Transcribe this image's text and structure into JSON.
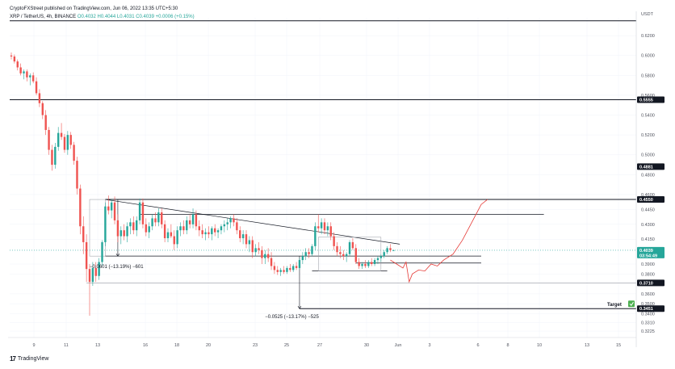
{
  "header": {
    "published": "CryptoFXStreet published on TradingView.com, Jun 06, 2022 13:35 UTC+5:30",
    "pair": "XRP / TetherUS, 4h, BINANCE",
    "ohlc": "O0.4032  H0.4044  L0.4031  C0.4039  +0.0006 (+0.15%)"
  },
  "footer": {
    "logo_text": "TradingView"
  },
  "colors": {
    "up": "#26a69a",
    "down": "#ef5350",
    "projection": "#e53935",
    "price_line": "#26a69a",
    "target_check": "#4caf50"
  },
  "chart_data": {
    "type": "candlestick",
    "currency_label": "USDT",
    "ylim": [
      0.316,
      0.638
    ],
    "y_ticks": [
      "0.6200",
      "0.6000",
      "0.5800",
      "0.5600",
      "0.5400",
      "0.5200",
      "0.5000",
      "0.4800",
      "0.4600",
      "0.4450",
      "0.4300",
      "0.4150",
      "0.3900",
      "0.3800",
      "0.3600",
      "0.3500",
      "0.3400",
      "0.3310",
      "0.3225"
    ],
    "x_ticks": [
      "9",
      "11",
      "13",
      "16",
      "18",
      "20",
      "23",
      "25",
      "27",
      "30",
      "Jun",
      "3",
      "6",
      "8",
      "10",
      "13",
      "15"
    ],
    "price_tags": [
      {
        "label": "0.5555",
        "value": 0.5555
      },
      {
        "label": "0.4881",
        "value": 0.4881
      },
      {
        "label": "0.4550",
        "value": 0.455
      },
      {
        "label": "0.4039",
        "value": 0.4039
      },
      {
        "label": "0.3710",
        "value": 0.371
      },
      {
        "label": "0.3451",
        "value": 0.3451
      }
    ],
    "current_price_countdown": "03:54:49",
    "horizontal_levels": [
      0.635,
      0.5555,
      0.455,
      0.44,
      0.371,
      0.3451
    ],
    "annotations": {
      "measure_1": "−0.0601 (−13.19%) −601",
      "measure_2": "−0.0525 (−13.17%) −525",
      "target_label": "Target"
    },
    "candles": [
      {
        "t": 0,
        "o": 0.6,
        "h": 0.603,
        "l": 0.596,
        "c": 0.599
      },
      {
        "t": 1,
        "o": 0.599,
        "h": 0.601,
        "l": 0.592,
        "c": 0.594
      },
      {
        "t": 2,
        "o": 0.594,
        "h": 0.596,
        "l": 0.585,
        "c": 0.588
      },
      {
        "t": 3,
        "o": 0.588,
        "h": 0.592,
        "l": 0.58,
        "c": 0.582
      },
      {
        "t": 4,
        "o": 0.582,
        "h": 0.586,
        "l": 0.576,
        "c": 0.584
      },
      {
        "t": 5,
        "o": 0.584,
        "h": 0.586,
        "l": 0.574,
        "c": 0.578
      },
      {
        "t": 6,
        "o": 0.578,
        "h": 0.582,
        "l": 0.57,
        "c": 0.58
      },
      {
        "t": 7,
        "o": 0.58,
        "h": 0.583,
        "l": 0.572,
        "c": 0.574
      },
      {
        "t": 8,
        "o": 0.574,
        "h": 0.578,
        "l": 0.56,
        "c": 0.562
      },
      {
        "t": 9,
        "o": 0.562,
        "h": 0.566,
        "l": 0.548,
        "c": 0.552
      },
      {
        "t": 10,
        "o": 0.552,
        "h": 0.554,
        "l": 0.536,
        "c": 0.54
      },
      {
        "t": 11,
        "o": 0.54,
        "h": 0.545,
        "l": 0.52,
        "c": 0.525
      },
      {
        "t": 12,
        "o": 0.525,
        "h": 0.528,
        "l": 0.5,
        "c": 0.505
      },
      {
        "t": 13,
        "o": 0.505,
        "h": 0.51,
        "l": 0.484,
        "c": 0.49
      },
      {
        "t": 14,
        "o": 0.49,
        "h": 0.512,
        "l": 0.486,
        "c": 0.508
      },
      {
        "t": 15,
        "o": 0.508,
        "h": 0.528,
        "l": 0.504,
        "c": 0.522
      },
      {
        "t": 16,
        "o": 0.522,
        "h": 0.532,
        "l": 0.515,
        "c": 0.518
      },
      {
        "t": 17,
        "o": 0.518,
        "h": 0.521,
        "l": 0.502,
        "c": 0.505
      },
      {
        "t": 18,
        "o": 0.505,
        "h": 0.524,
        "l": 0.5,
        "c": 0.52
      },
      {
        "t": 19,
        "o": 0.52,
        "h": 0.523,
        "l": 0.506,
        "c": 0.51
      },
      {
        "t": 20,
        "o": 0.51,
        "h": 0.513,
        "l": 0.49,
        "c": 0.494
      },
      {
        "t": 21,
        "o": 0.494,
        "h": 0.498,
        "l": 0.46,
        "c": 0.466
      },
      {
        "t": 22,
        "o": 0.466,
        "h": 0.47,
        "l": 0.42,
        "c": 0.428
      },
      {
        "t": 23,
        "o": 0.428,
        "h": 0.438,
        "l": 0.4,
        "c": 0.412
      },
      {
        "t": 24,
        "o": 0.412,
        "h": 0.42,
        "l": 0.372,
        "c": 0.385
      },
      {
        "t": 25,
        "o": 0.385,
        "h": 0.39,
        "l": 0.338,
        "c": 0.372
      },
      {
        "t": 26,
        "o": 0.372,
        "h": 0.392,
        "l": 0.368,
        "c": 0.386
      },
      {
        "t": 27,
        "o": 0.386,
        "h": 0.392,
        "l": 0.372,
        "c": 0.378
      },
      {
        "t": 28,
        "o": 0.378,
        "h": 0.396,
        "l": 0.374,
        "c": 0.392
      },
      {
        "t": 29,
        "o": 0.392,
        "h": 0.414,
        "l": 0.388,
        "c": 0.412
      },
      {
        "t": 30,
        "o": 0.412,
        "h": 0.452,
        "l": 0.408,
        "c": 0.448
      },
      {
        "t": 31,
        "o": 0.448,
        "h": 0.459,
        "l": 0.44,
        "c": 0.444
      },
      {
        "t": 32,
        "o": 0.444,
        "h": 0.455,
        "l": 0.436,
        "c": 0.452
      },
      {
        "t": 33,
        "o": 0.452,
        "h": 0.458,
        "l": 0.43,
        "c": 0.434
      },
      {
        "t": 34,
        "o": 0.434,
        "h": 0.44,
        "l": 0.412,
        "c": 0.418
      },
      {
        "t": 35,
        "o": 0.418,
        "h": 0.428,
        "l": 0.41,
        "c": 0.424
      },
      {
        "t": 36,
        "o": 0.424,
        "h": 0.43,
        "l": 0.414,
        "c": 0.418
      },
      {
        "t": 37,
        "o": 0.418,
        "h": 0.432,
        "l": 0.412,
        "c": 0.428
      },
      {
        "t": 38,
        "o": 0.428,
        "h": 0.436,
        "l": 0.42,
        "c": 0.432
      },
      {
        "t": 39,
        "o": 0.432,
        "h": 0.438,
        "l": 0.42,
        "c": 0.424
      },
      {
        "t": 40,
        "o": 0.424,
        "h": 0.438,
        "l": 0.418,
        "c": 0.434
      },
      {
        "t": 41,
        "o": 0.434,
        "h": 0.456,
        "l": 0.43,
        "c": 0.452
      },
      {
        "t": 42,
        "o": 0.452,
        "h": 0.456,
        "l": 0.426,
        "c": 0.43
      },
      {
        "t": 43,
        "o": 0.43,
        "h": 0.436,
        "l": 0.418,
        "c": 0.422
      },
      {
        "t": 44,
        "o": 0.422,
        "h": 0.432,
        "l": 0.416,
        "c": 0.428
      },
      {
        "t": 45,
        "o": 0.428,
        "h": 0.44,
        "l": 0.424,
        "c": 0.436
      },
      {
        "t": 46,
        "o": 0.436,
        "h": 0.442,
        "l": 0.428,
        "c": 0.432
      },
      {
        "t": 47,
        "o": 0.432,
        "h": 0.446,
        "l": 0.428,
        "c": 0.442
      },
      {
        "t": 48,
        "o": 0.442,
        "h": 0.446,
        "l": 0.426,
        "c": 0.43
      },
      {
        "t": 49,
        "o": 0.43,
        "h": 0.434,
        "l": 0.412,
        "c": 0.416
      },
      {
        "t": 50,
        "o": 0.416,
        "h": 0.426,
        "l": 0.412,
        "c": 0.422
      },
      {
        "t": 51,
        "o": 0.422,
        "h": 0.43,
        "l": 0.416,
        "c": 0.418
      },
      {
        "t": 52,
        "o": 0.418,
        "h": 0.424,
        "l": 0.404,
        "c": 0.41
      },
      {
        "t": 53,
        "o": 0.41,
        "h": 0.428,
        "l": 0.406,
        "c": 0.424
      },
      {
        "t": 54,
        "o": 0.424,
        "h": 0.432,
        "l": 0.418,
        "c": 0.428
      },
      {
        "t": 55,
        "o": 0.428,
        "h": 0.434,
        "l": 0.42,
        "c": 0.424
      },
      {
        "t": 56,
        "o": 0.424,
        "h": 0.438,
        "l": 0.42,
        "c": 0.434
      },
      {
        "t": 57,
        "o": 0.434,
        "h": 0.44,
        "l": 0.426,
        "c": 0.43
      },
      {
        "t": 58,
        "o": 0.43,
        "h": 0.446,
        "l": 0.426,
        "c": 0.44
      },
      {
        "t": 59,
        "o": 0.44,
        "h": 0.444,
        "l": 0.424,
        "c": 0.428
      },
      {
        "t": 60,
        "o": 0.428,
        "h": 0.434,
        "l": 0.418,
        "c": 0.424
      },
      {
        "t": 61,
        "o": 0.424,
        "h": 0.43,
        "l": 0.416,
        "c": 0.42
      },
      {
        "t": 62,
        "o": 0.42,
        "h": 0.426,
        "l": 0.414,
        "c": 0.422
      },
      {
        "t": 63,
        "o": 0.422,
        "h": 0.428,
        "l": 0.416,
        "c": 0.42
      },
      {
        "t": 64,
        "o": 0.42,
        "h": 0.428,
        "l": 0.414,
        "c": 0.426
      },
      {
        "t": 65,
        "o": 0.426,
        "h": 0.43,
        "l": 0.418,
        "c": 0.422
      },
      {
        "t": 66,
        "o": 0.422,
        "h": 0.426,
        "l": 0.416,
        "c": 0.424
      },
      {
        "t": 67,
        "o": 0.424,
        "h": 0.43,
        "l": 0.42,
        "c": 0.428
      },
      {
        "t": 68,
        "o": 0.428,
        "h": 0.434,
        "l": 0.422,
        "c": 0.43
      },
      {
        "t": 69,
        "o": 0.43,
        "h": 0.436,
        "l": 0.424,
        "c": 0.432
      },
      {
        "t": 70,
        "o": 0.432,
        "h": 0.438,
        "l": 0.426,
        "c": 0.436
      },
      {
        "t": 71,
        "o": 0.436,
        "h": 0.44,
        "l": 0.428,
        "c": 0.432
      },
      {
        "t": 72,
        "o": 0.432,
        "h": 0.436,
        "l": 0.42,
        "c": 0.424
      },
      {
        "t": 73,
        "o": 0.424,
        "h": 0.428,
        "l": 0.412,
        "c": 0.416
      },
      {
        "t": 74,
        "o": 0.416,
        "h": 0.424,
        "l": 0.41,
        "c": 0.42
      },
      {
        "t": 75,
        "o": 0.42,
        "h": 0.424,
        "l": 0.406,
        "c": 0.41
      },
      {
        "t": 76,
        "o": 0.41,
        "h": 0.418,
        "l": 0.402,
        "c": 0.414
      },
      {
        "t": 77,
        "o": 0.414,
        "h": 0.418,
        "l": 0.396,
        "c": 0.402
      },
      {
        "t": 78,
        "o": 0.402,
        "h": 0.41,
        "l": 0.398,
        "c": 0.406
      },
      {
        "t": 79,
        "o": 0.406,
        "h": 0.412,
        "l": 0.4,
        "c": 0.404
      },
      {
        "t": 80,
        "o": 0.404,
        "h": 0.408,
        "l": 0.39,
        "c": 0.396
      },
      {
        "t": 81,
        "o": 0.396,
        "h": 0.404,
        "l": 0.39,
        "c": 0.4
      },
      {
        "t": 82,
        "o": 0.4,
        "h": 0.406,
        "l": 0.392,
        "c": 0.396
      },
      {
        "t": 83,
        "o": 0.396,
        "h": 0.402,
        "l": 0.384,
        "c": 0.388
      },
      {
        "t": 84,
        "o": 0.388,
        "h": 0.392,
        "l": 0.38,
        "c": 0.384
      },
      {
        "t": 85,
        "o": 0.384,
        "h": 0.388,
        "l": 0.379,
        "c": 0.382
      },
      {
        "t": 86,
        "o": 0.382,
        "h": 0.386,
        "l": 0.378,
        "c": 0.384
      },
      {
        "t": 87,
        "o": 0.384,
        "h": 0.388,
        "l": 0.38,
        "c": 0.382
      },
      {
        "t": 88,
        "o": 0.382,
        "h": 0.388,
        "l": 0.38,
        "c": 0.386
      },
      {
        "t": 89,
        "o": 0.386,
        "h": 0.39,
        "l": 0.382,
        "c": 0.384
      },
      {
        "t": 90,
        "o": 0.384,
        "h": 0.39,
        "l": 0.382,
        "c": 0.388
      },
      {
        "t": 91,
        "o": 0.388,
        "h": 0.392,
        "l": 0.384,
        "c": 0.386
      },
      {
        "t": 92,
        "o": 0.386,
        "h": 0.396,
        "l": 0.384,
        "c": 0.394
      },
      {
        "t": 93,
        "o": 0.394,
        "h": 0.402,
        "l": 0.39,
        "c": 0.398
      },
      {
        "t": 94,
        "o": 0.398,
        "h": 0.406,
        "l": 0.394,
        "c": 0.402
      },
      {
        "t": 95,
        "o": 0.402,
        "h": 0.406,
        "l": 0.396,
        "c": 0.4
      },
      {
        "t": 96,
        "o": 0.4,
        "h": 0.41,
        "l": 0.398,
        "c": 0.408
      },
      {
        "t": 97,
        "o": 0.408,
        "h": 0.432,
        "l": 0.404,
        "c": 0.428
      },
      {
        "t": 98,
        "o": 0.428,
        "h": 0.44,
        "l": 0.422,
        "c": 0.426
      },
      {
        "t": 99,
        "o": 0.426,
        "h": 0.436,
        "l": 0.42,
        "c": 0.432
      },
      {
        "t": 100,
        "o": 0.432,
        "h": 0.436,
        "l": 0.42,
        "c": 0.424
      },
      {
        "t": 101,
        "o": 0.424,
        "h": 0.432,
        "l": 0.418,
        "c": 0.428
      },
      {
        "t": 102,
        "o": 0.428,
        "h": 0.432,
        "l": 0.414,
        "c": 0.418
      },
      {
        "t": 103,
        "o": 0.418,
        "h": 0.422,
        "l": 0.404,
        "c": 0.408
      },
      {
        "t": 104,
        "o": 0.408,
        "h": 0.412,
        "l": 0.398,
        "c": 0.402
      },
      {
        "t": 105,
        "o": 0.402,
        "h": 0.408,
        "l": 0.396,
        "c": 0.4
      },
      {
        "t": 106,
        "o": 0.4,
        "h": 0.404,
        "l": 0.394,
        "c": 0.398
      },
      {
        "t": 107,
        "o": 0.398,
        "h": 0.402,
        "l": 0.392,
        "c": 0.4
      },
      {
        "t": 108,
        "o": 0.4,
        "h": 0.414,
        "l": 0.398,
        "c": 0.412
      },
      {
        "t": 109,
        "o": 0.412,
        "h": 0.416,
        "l": 0.404,
        "c": 0.406
      },
      {
        "t": 110,
        "o": 0.406,
        "h": 0.41,
        "l": 0.39,
        "c": 0.392
      },
      {
        "t": 111,
        "o": 0.392,
        "h": 0.396,
        "l": 0.385,
        "c": 0.388
      },
      {
        "t": 112,
        "o": 0.388,
        "h": 0.392,
        "l": 0.385,
        "c": 0.39
      },
      {
        "t": 113,
        "o": 0.39,
        "h": 0.394,
        "l": 0.386,
        "c": 0.388
      },
      {
        "t": 114,
        "o": 0.388,
        "h": 0.394,
        "l": 0.386,
        "c": 0.392
      },
      {
        "t": 115,
        "o": 0.392,
        "h": 0.396,
        "l": 0.388,
        "c": 0.39
      },
      {
        "t": 116,
        "o": 0.39,
        "h": 0.396,
        "l": 0.388,
        "c": 0.394
      },
      {
        "t": 117,
        "o": 0.394,
        "h": 0.398,
        "l": 0.39,
        "c": 0.396
      },
      {
        "t": 118,
        "o": 0.396,
        "h": 0.4,
        "l": 0.392,
        "c": 0.398
      },
      {
        "t": 119,
        "o": 0.398,
        "h": 0.404,
        "l": 0.396,
        "c": 0.402
      },
      {
        "t": 120,
        "o": 0.402,
        "h": 0.408,
        "l": 0.4,
        "c": 0.406
      },
      {
        "t": 121,
        "o": 0.406,
        "h": 0.41,
        "l": 0.402,
        "c": 0.404
      },
      {
        "t": 122,
        "o": 0.4032,
        "h": 0.4044,
        "l": 0.4031,
        "c": 0.4039
      }
    ],
    "projection_path": [
      [
        121,
        0.394
      ],
      [
        123,
        0.39
      ],
      [
        125,
        0.386
      ],
      [
        126,
        0.392
      ],
      [
        127,
        0.372
      ],
      [
        128,
        0.38
      ],
      [
        130,
        0.384
      ],
      [
        132,
        0.383
      ],
      [
        134,
        0.39
      ],
      [
        136,
        0.388
      ],
      [
        138,
        0.394
      ],
      [
        141,
        0.4
      ],
      [
        144,
        0.414
      ],
      [
        147,
        0.432
      ],
      [
        150,
        0.45
      ],
      [
        152,
        0.455
      ]
    ]
  }
}
